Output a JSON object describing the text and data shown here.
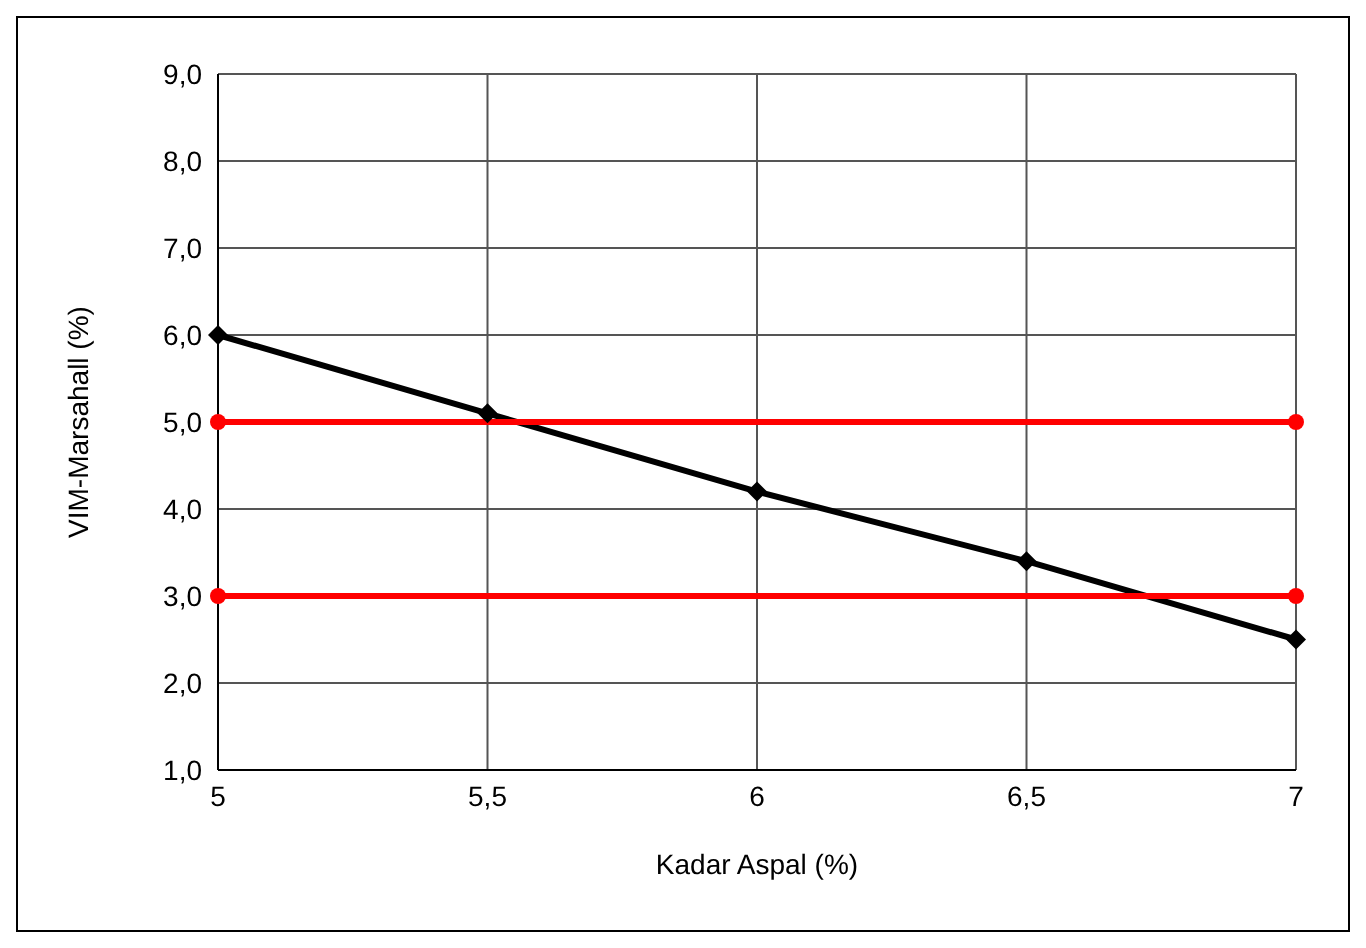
{
  "chart_data": {
    "type": "line",
    "xlabel": "Kadar Aspal  (%)",
    "ylabel": "VIM-Marsahall (%)",
    "x": [
      5,
      5.5,
      6,
      6.5,
      7
    ],
    "series": [
      {
        "color": "#000000",
        "values": [
          6.0,
          5.1,
          4.2,
          3.4,
          2.5
        ],
        "marker": "diamond"
      },
      {
        "color": "#ff0000",
        "values": [
          5.0,
          null,
          null,
          null,
          5.0
        ],
        "marker": "circle"
      },
      {
        "color": "#ff0000",
        "values": [
          3.0,
          null,
          null,
          null,
          3.0
        ],
        "marker": "circle"
      }
    ],
    "xlim": [
      5,
      7
    ],
    "xticks": [
      5,
      {
        "value": 5.5,
        "label": "5,5"
      },
      6,
      {
        "value": 6.5,
        "label": "6,5"
      },
      7
    ],
    "ylim": [
      1,
      9
    ],
    "yticks": [
      {
        "value": 1,
        "label": "1,0"
      },
      {
        "value": 2,
        "label": "2,0"
      },
      {
        "value": 3,
        "label": "3,0"
      },
      {
        "value": 4,
        "label": "4,0"
      },
      {
        "value": 5,
        "label": "5,0"
      },
      {
        "value": 6,
        "label": "6,0"
      },
      {
        "value": 7,
        "label": "7,0"
      },
      {
        "value": 8,
        "label": "8,0"
      },
      {
        "value": 9,
        "label": "9,0"
      }
    ],
    "grid": true,
    "line_style": "solid"
  }
}
